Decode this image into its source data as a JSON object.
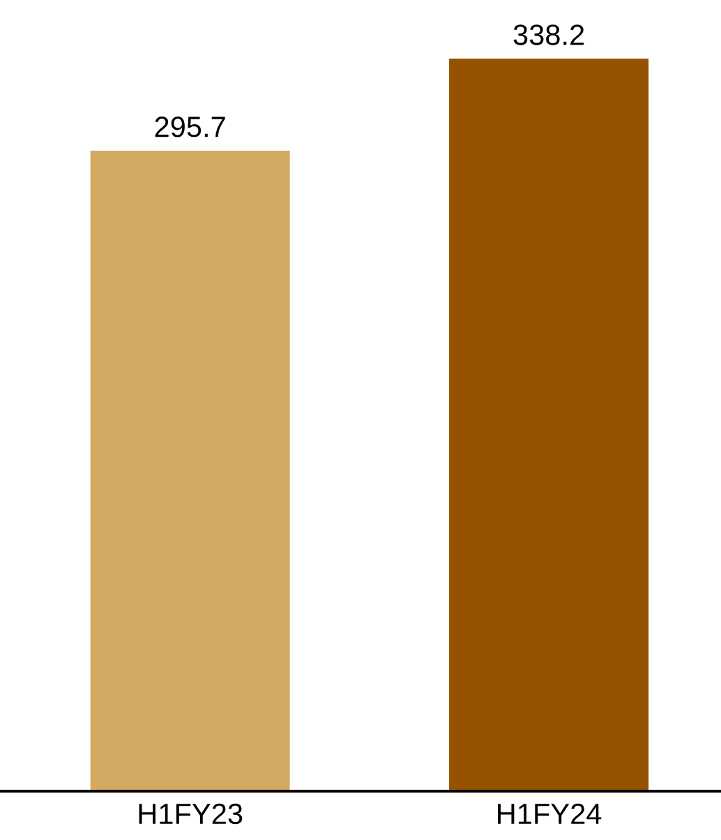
{
  "chart_data": {
    "type": "bar",
    "categories": [
      "H1FY23",
      "H1FY24"
    ],
    "values": [
      295.7,
      338.2
    ],
    "colors": [
      "#d3aa62",
      "#955300"
    ],
    "data_labels": true,
    "tick_labels": "x",
    "grid": false,
    "legend": false
  }
}
